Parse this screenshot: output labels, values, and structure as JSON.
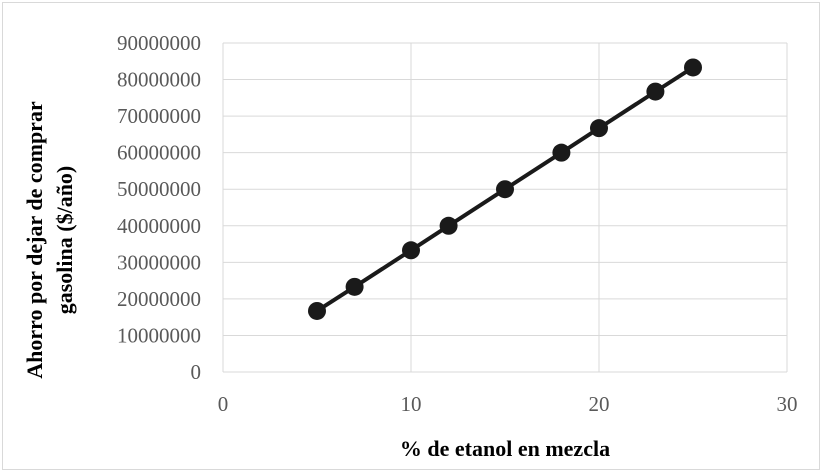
{
  "chart_data": {
    "type": "scatter",
    "title": "",
    "xlabel": "% de etanol en mezcla",
    "ylabel_lines": [
      "Ahorro por dejar de comprar",
      "gasolina ($/año)"
    ],
    "xlim": [
      0,
      30
    ],
    "ylim": [
      0,
      90000000
    ],
    "x_ticks": [
      0,
      10,
      20,
      30
    ],
    "y_ticks": [
      0,
      10000000,
      20000000,
      30000000,
      40000000,
      50000000,
      60000000,
      70000000,
      80000000,
      90000000
    ],
    "grid": "vertical-and-horizontal",
    "legend": "none",
    "series": [
      {
        "x": [
          5,
          7,
          10,
          12,
          15,
          18,
          20,
          23,
          25
        ],
        "y": [
          16700000,
          23300000,
          33300000,
          40000000,
          50000000,
          60000000,
          66700000,
          76700000,
          83300000
        ],
        "line": true,
        "color": "#1a1a1a"
      }
    ]
  }
}
